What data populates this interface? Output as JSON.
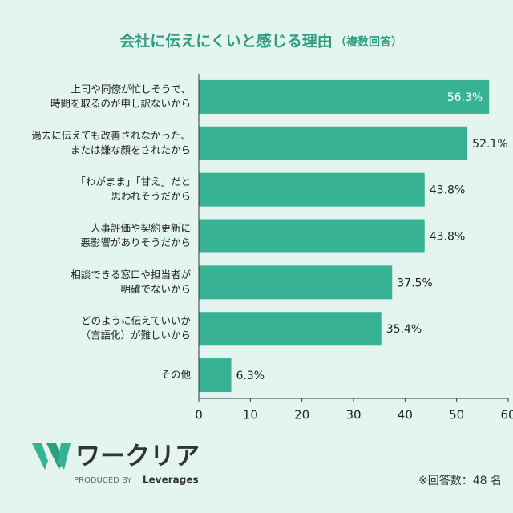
{
  "chart_data": {
    "type": "hbar",
    "title": "会社に伝えにくいと感じる理由",
    "subtitle": "（複数回答）",
    "categories": [
      [
        "上司や同僚が忙しそうで、",
        "時間を取るのが申し訳ないから"
      ],
      [
        "過去に伝えても改善されなかった、",
        "または嫌な顔をされたから"
      ],
      [
        "「わがまま」「甘え」だと",
        "思われそうだから"
      ],
      [
        "人事評価や契約更新に",
        "悪影響がありそうだから"
      ],
      [
        "相談できる窓口や担当者が",
        "明確でないから"
      ],
      [
        "どのように伝えていいか",
        "（言語化）が難しいから"
      ],
      [
        "その他"
      ]
    ],
    "values": [
      56.3,
      52.1,
      43.8,
      43.8,
      37.5,
      35.4,
      6.3
    ],
    "value_labels": [
      "56.3%",
      "52.1%",
      "43.8%",
      "43.8%",
      "37.5%",
      "35.4%",
      "6.3%"
    ],
    "color": "#38b294",
    "xlim": [
      0,
      60
    ],
    "xticks": [
      0,
      10,
      20,
      30,
      40,
      50,
      60
    ],
    "note": "※回答数：48 名"
  },
  "logo": {
    "name": "ワークリア",
    "produced_by": "PRODUCED BY",
    "brand": "Leverages"
  }
}
